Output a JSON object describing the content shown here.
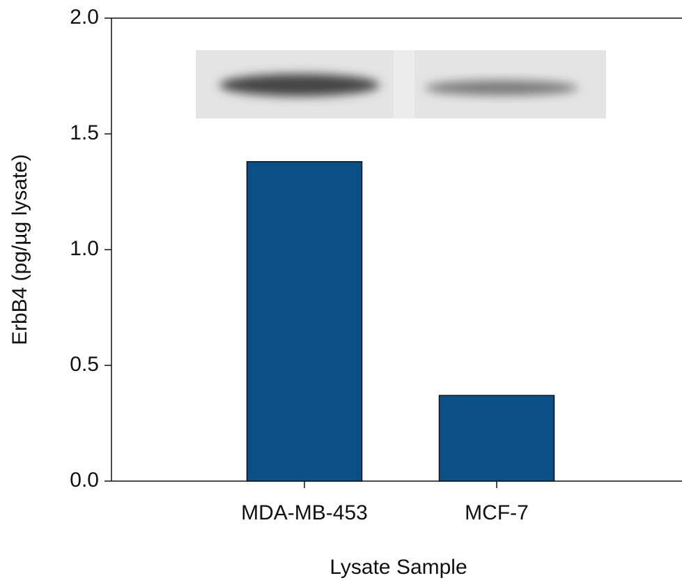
{
  "chart_data": {
    "type": "bar",
    "y_label": "ErbB4 (pg/µg lysate)",
    "x_label": "Lysate Sample",
    "categories": [
      "MDA-MB-453",
      "MCF-7"
    ],
    "values": [
      1.38,
      0.37
    ],
    "color": "#0a5087",
    "ylim": [
      0,
      2
    ],
    "yticks": [
      {
        "value": 0,
        "label": "0.0"
      },
      0.5,
      {
        "value": 1,
        "label": "1.0"
      },
      1.5,
      {
        "value": 2,
        "label": "2.0"
      }
    ],
    "grid": false
  }
}
